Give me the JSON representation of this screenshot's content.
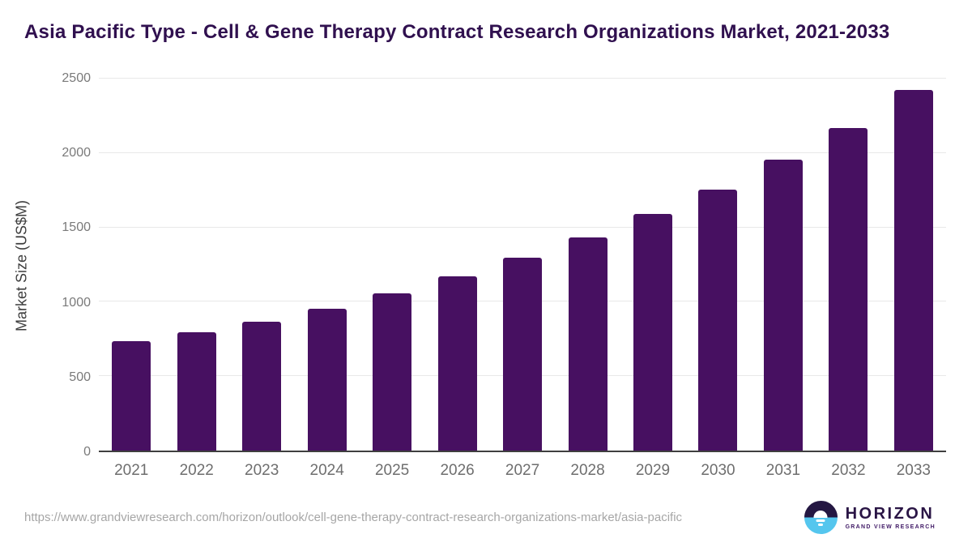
{
  "page": {
    "title": "Asia Pacific Type - Cell & Gene Therapy Contract Research Organizations Market, 2021-2033"
  },
  "chart_data": {
    "type": "bar",
    "title": "Asia Pacific Type - Cell & Gene Therapy Contract Research Organizations Market, 2021-2033",
    "categories": [
      "2021",
      "2022",
      "2023",
      "2024",
      "2025",
      "2026",
      "2027",
      "2028",
      "2029",
      "2030",
      "2031",
      "2032",
      "2033"
    ],
    "values": [
      735,
      795,
      865,
      955,
      1055,
      1170,
      1295,
      1430,
      1590,
      1755,
      1955,
      2170,
      2425
    ],
    "xlabel": "",
    "ylabel": "Market Size (US$M)",
    "ylim": [
      0,
      2500
    ],
    "yticks": [
      0,
      500,
      1000,
      1500,
      2000,
      2500
    ],
    "grid": "horizontal",
    "legend_position": "none",
    "bar_color": "#471061",
    "axis_line_color": "#3f3f3f",
    "gridline_color": "#e8e8e8",
    "tick_label_color": "#7a7a7a"
  },
  "footer": {
    "source_url": "https://www.grandviewresearch.com/horizon/outlook/cell-gene-therapy-contract-research-organizations-market/asia-pacific",
    "logo": {
      "name": "HORIZON",
      "subtitle": "GRAND VIEW RESEARCH",
      "icon": "horizon-sun-circle-icon",
      "icon_top_color": "#241742",
      "icon_bottom_color": "#55c6ee"
    }
  }
}
